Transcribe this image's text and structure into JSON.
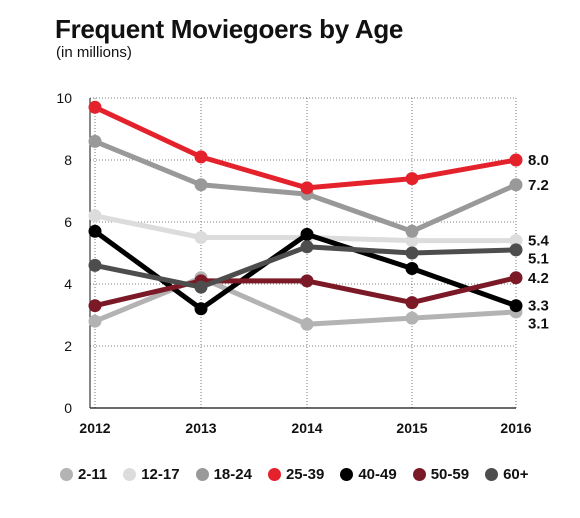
{
  "chart_data": {
    "type": "line",
    "title": "Frequent Moviegoers by Age",
    "subtitle": "(in millions)",
    "x": [
      "2012",
      "2013",
      "2014",
      "2015",
      "2016"
    ],
    "ylim": [
      0,
      10
    ],
    "yticks": [
      0,
      2,
      4,
      6,
      8,
      10
    ],
    "grid": "dotted",
    "legend_position": "bottom",
    "series": [
      {
        "name": "2-11",
        "color": "#b3b3b3",
        "values": [
          2.8,
          4.2,
          2.7,
          2.9,
          3.1
        ],
        "end_label": "3.1"
      },
      {
        "name": "12-17",
        "color": "#dcdcdc",
        "values": [
          6.2,
          5.5,
          5.5,
          5.4,
          5.4
        ],
        "end_label": "5.4"
      },
      {
        "name": "18-24",
        "color": "#999999",
        "values": [
          8.6,
          7.2,
          6.9,
          5.7,
          7.2
        ],
        "end_label": "7.2"
      },
      {
        "name": "25-39",
        "color": "#e4222b",
        "values": [
          9.7,
          8.1,
          7.1,
          7.4,
          8.0
        ],
        "end_label": "8.0"
      },
      {
        "name": "40-49",
        "color": "#000000",
        "values": [
          5.7,
          3.2,
          5.6,
          4.5,
          3.3
        ],
        "end_label": "3.3"
      },
      {
        "name": "50-59",
        "color": "#7b1a26",
        "values": [
          3.3,
          4.1,
          4.1,
          3.4,
          4.2
        ],
        "end_label": "4.2"
      },
      {
        "name": "60+",
        "color": "#4d4d4d",
        "values": [
          4.6,
          3.9,
          5.2,
          5.0,
          5.1
        ],
        "end_label": "5.1"
      }
    ]
  }
}
